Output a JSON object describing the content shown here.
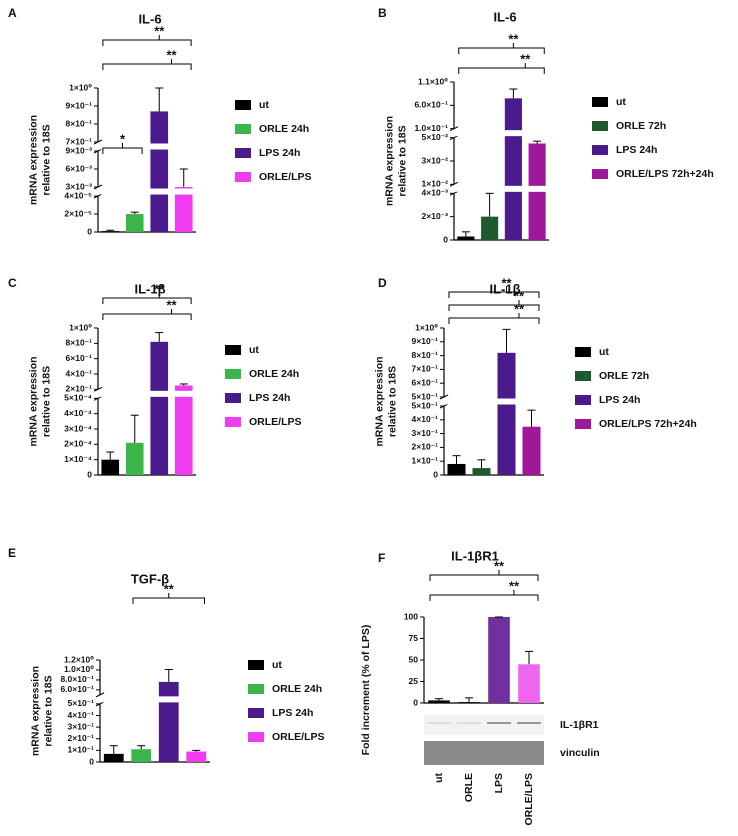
{
  "chart_data": [
    {
      "type": "bar",
      "panel": "A",
      "title": "IL-6",
      "ylabel": [
        "mRNA expression",
        "relative to 18S"
      ],
      "categories": [
        "ut",
        "ORLE 24h",
        "LPS 24h",
        "ORLE/LPS"
      ],
      "colors": [
        "#000000",
        "#3cb54a",
        "#4b1a8c",
        "#f03cf0"
      ],
      "values": [
        1e-06,
        2e-05,
        0.87,
        0.003
      ],
      "errors": [
        1e-06,
        2e-06,
        0.13,
        0.003
      ],
      "segments": [
        {
          "ylim": [
            0,
            4e-05
          ],
          "yticks": [
            0,
            {
              "value": 2e-05,
              "label": "2×10⁻⁵"
            },
            {
              "value": 4e-05,
              "label": "4×10⁻⁵"
            }
          ]
        },
        {
          "ylim": [
            0.003,
            0.009
          ],
          "yticks": [
            {
              "value": 0.003,
              "label": "3×10⁻³"
            },
            {
              "value": 0.006,
              "label": "6×10⁻³"
            },
            {
              "value": 0.009,
              "label": "9×10⁻³"
            }
          ]
        },
        {
          "ylim": [
            0.7,
            1
          ],
          "yticks": [
            {
              "value": 0.7,
              "label": "7×10⁻¹"
            },
            {
              "value": 0.8,
              "label": "8×10⁻¹"
            },
            {
              "value": 0.9,
              "label": "9×10⁻¹"
            },
            {
              "value": 1,
              "label": "1×10⁰"
            }
          ]
        }
      ],
      "annotations": [
        "**",
        "**",
        "*"
      ]
    },
    {
      "type": "bar",
      "panel": "B",
      "title": "IL-6",
      "ylabel": [
        "mRNA expression",
        "relative to 18S"
      ],
      "categories": [
        "ut",
        "ORLE 72h",
        "LPS 24h",
        "ORLE/LPS 72h+24h"
      ],
      "colors": [
        "#000000",
        "#1e5a2e",
        "#4b1a8c",
        "#a0189a"
      ],
      "values": [
        0.0003,
        0.002,
        0.75,
        0.045
      ],
      "errors": [
        0.0004,
        0.002,
        0.2,
        0.002
      ],
      "segments": [
        {
          "ylim": [
            0,
            0.004
          ],
          "yticks": [
            0,
            {
              "value": 0.002,
              "label": "2×10⁻³"
            },
            {
              "value": 0.004,
              "label": "4×10⁻³"
            }
          ]
        },
        {
          "ylim": [
            0.01,
            0.05
          ],
          "yticks": [
            {
              "value": 0.01,
              "label": "1×10⁻²"
            },
            {
              "value": 0.03,
              "label": "3×10⁻²"
            },
            {
              "value": 0.05,
              "label": "5×10⁻²"
            }
          ]
        },
        {
          "ylim": [
            0.1,
            1.1
          ],
          "yticks": [
            {
              "value": 0.1,
              "label": "1.0×10⁻¹"
            },
            {
              "value": 0.6,
              "label": "6.0×10⁻¹"
            },
            {
              "value": 1.1,
              "label": "1.1×10⁰"
            }
          ]
        }
      ],
      "annotations": [
        "**",
        "**"
      ]
    },
    {
      "type": "bar",
      "panel": "C",
      "title": "IL-1β",
      "ylabel": [
        "mRNA expression",
        "relative to 18S"
      ],
      "categories": [
        "ut",
        "ORLE 24h",
        "LPS 24h",
        "ORLE/LPS"
      ],
      "colors": [
        "#000000",
        "#3cb54a",
        "#4b1a8c",
        "#f03cf0"
      ],
      "values": [
        0.0001,
        0.00021,
        0.82,
        0.25
      ],
      "errors": [
        5e-05,
        0.00018,
        0.12,
        0.02
      ],
      "segments": [
        {
          "ylim": [
            0,
            0.0005
          ],
          "yticks": [
            0,
            {
              "value": 0.0001,
              "label": "1×10⁻⁴"
            },
            {
              "value": 0.0002,
              "label": "2×10⁻⁴"
            },
            {
              "value": 0.0003,
              "label": "3×10⁻⁴"
            },
            {
              "value": 0.0004,
              "label": "4×10⁻⁴"
            },
            {
              "value": 0.0005,
              "label": "5×10⁻⁴"
            }
          ]
        },
        {
          "ylim": [
            0.2,
            1
          ],
          "yticks": [
            {
              "value": 0.2,
              "label": "2×10⁻¹"
            },
            {
              "value": 0.4,
              "label": "4×10⁻¹"
            },
            {
              "value": 0.6,
              "label": "6×10⁻¹"
            },
            {
              "value": 0.8,
              "label": "8×10⁻¹"
            },
            {
              "value": 1,
              "label": "1×10⁰"
            }
          ]
        }
      ],
      "annotations": [
        "**",
        "**"
      ]
    },
    {
      "type": "bar",
      "panel": "D",
      "title": "IL-1β",
      "ylabel": [
        "mRNA expression",
        "relative to 18S"
      ],
      "categories": [
        "ut",
        "ORLE 72h",
        "LPS 24h",
        "ORLE/LPS 72h+24h"
      ],
      "colors": [
        "#000000",
        "#1e5a2e",
        "#4b1a8c",
        "#a0189a"
      ],
      "values": [
        0.08,
        0.05,
        0.82,
        0.35
      ],
      "errors": [
        0.06,
        0.06,
        0.17,
        0.12
      ],
      "segments": [
        {
          "ylim": [
            0,
            0.5
          ],
          "yticks": [
            0,
            {
              "value": 0.1,
              "label": "1×10⁻¹"
            },
            {
              "value": 0.2,
              "label": "2×10⁻¹"
            },
            {
              "value": 0.3,
              "label": "3×10⁻¹"
            },
            {
              "value": 0.4,
              "label": "4×10⁻¹"
            },
            {
              "value": 0.5,
              "label": "5×10⁻¹"
            }
          ]
        },
        {
          "ylim": [
            0.5,
            1
          ],
          "yticks": [
            {
              "value": 0.5,
              "label": "5×10⁻¹"
            },
            {
              "value": 0.6,
              "label": "6×10⁻¹"
            },
            {
              "value": 0.7,
              "label": "7×10⁻¹"
            },
            {
              "value": 0.8,
              "label": "8×10⁻¹"
            },
            {
              "value": 0.9,
              "label": "9×10⁻¹"
            },
            {
              "value": 1,
              "label": "1×10⁰"
            }
          ]
        }
      ],
      "annotations": [
        "**",
        "**",
        "**"
      ]
    },
    {
      "type": "bar",
      "panel": "E",
      "title": "TGF-β",
      "ylabel": [
        "mRNA expression",
        "relative to 18S"
      ],
      "categories": [
        "ut",
        "ORLE 24h",
        "LPS 24h",
        "ORLE/LPS"
      ],
      "colors": [
        "#000000",
        "#3cb54a",
        "#4b1a8c",
        "#f03cf0"
      ],
      "values": [
        0.07,
        0.11,
        0.76,
        0.09
      ],
      "errors": [
        0.07,
        0.03,
        0.25,
        0.01
      ],
      "segments": [
        {
          "ylim": [
            0,
            0.5
          ],
          "yticks": [
            0,
            {
              "value": 0.1,
              "label": "1×10⁻¹"
            },
            {
              "value": 0.2,
              "label": "2×10⁻¹"
            },
            {
              "value": 0.3,
              "label": "3×10⁻¹"
            },
            {
              "value": 0.4,
              "label": "4×10⁻¹"
            },
            {
              "value": 0.5,
              "label": "5×10⁻¹"
            }
          ]
        },
        {
          "ylim": [
            0.5,
            1.2
          ],
          "yticks": [
            {
              "value": 0.6,
              "label": "6.0×10⁻¹"
            },
            {
              "value": 0.8,
              "label": "8.0×10⁻¹"
            },
            {
              "value": 1,
              "label": "1.0×10⁰"
            },
            {
              "value": 1.2,
              "label": "1.2×10⁰"
            }
          ]
        }
      ],
      "annotations": [
        "**"
      ]
    },
    {
      "type": "bar",
      "panel": "F",
      "title": "IL-1βR1",
      "ylabel": [
        "Fold increment (% of LPS)"
      ],
      "categories": [
        "ut",
        "ORLE",
        "LPS",
        "ORLE/LPS"
      ],
      "colors": [
        "#000000",
        "#000000",
        "#7030a0",
        "#ee66ee"
      ],
      "values": [
        3,
        1,
        100,
        45
      ],
      "errors": [
        2,
        5,
        0,
        15
      ],
      "segments": [
        {
          "ylim": [
            0,
            100
          ],
          "yticks": [
            0,
            25,
            50,
            75,
            100
          ]
        }
      ],
      "annotations": [
        "**",
        "**"
      ],
      "blot_labels": [
        "IL-1βR1",
        "vinculin"
      ]
    }
  ]
}
